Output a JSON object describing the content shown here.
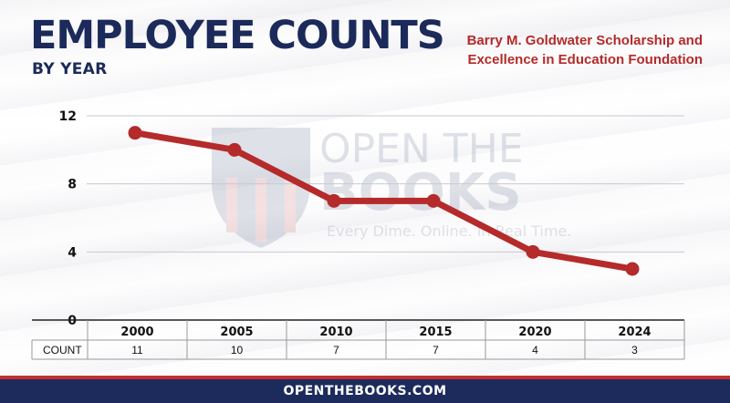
{
  "header": {
    "title": "EMPLOYEE COUNTS",
    "subtitle": "BY YEAR",
    "organization_line1": "Barry M. Goldwater Scholarship and",
    "organization_line2": "Excellence in Education Foundation"
  },
  "watermark": {
    "line1": "OPEN THE",
    "line2": "BOOKS",
    "tagline": "Every Dime. Online. In Real Time."
  },
  "footer": {
    "text": "OPENTHEBOOKS.COM"
  },
  "colors": {
    "navy": "#1c2b5c",
    "line": "#b52a2a",
    "accent_red": "#c22f2f"
  },
  "chart_data": {
    "type": "line",
    "categories": [
      "2000",
      "2005",
      "2010",
      "2015",
      "2020",
      "2024"
    ],
    "values": [
      11,
      10,
      7,
      7,
      4,
      3
    ],
    "y_ticks": [
      0,
      4,
      8,
      12
    ],
    "ylim": [
      0,
      12
    ],
    "grid": true,
    "table_row_label": "COUNT"
  }
}
